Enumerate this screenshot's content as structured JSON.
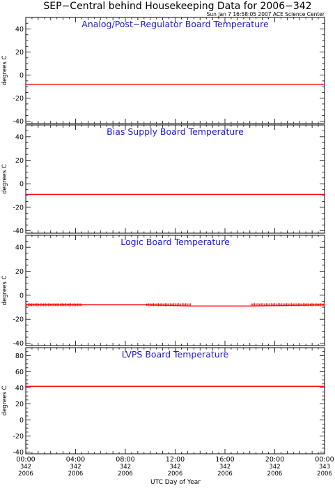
{
  "header": {
    "title": "SEP−Central behind Housekeeping Data for 2006−342",
    "timestamp": "Sun Jan  7 16:58:05 2007 ACE Science Center"
  },
  "x_axis": {
    "label": "UTC Day of Year",
    "range_hours": [
      0,
      24
    ],
    "ticks": [
      {
        "hour": 0,
        "time": "00:00",
        "doy": "342",
        "year": "2006"
      },
      {
        "hour": 4,
        "time": "04:00",
        "doy": "342",
        "year": "2006"
      },
      {
        "hour": 8,
        "time": "08:00",
        "doy": "342",
        "year": "2006"
      },
      {
        "hour": 12,
        "time": "12:00",
        "doy": "342",
        "year": "2006"
      },
      {
        "hour": 16,
        "time": "16:00",
        "doy": "342",
        "year": "2006"
      },
      {
        "hour": 20,
        "time": "20:00",
        "doy": "342",
        "year": "2006"
      },
      {
        "hour": 24,
        "time": "00:00",
        "doy": "343",
        "year": "2006"
      }
    ]
  },
  "colors": {
    "series": "#ff0000",
    "panel_title": "#1a1acc",
    "axes": "#000000"
  },
  "chart_data": [
    {
      "type": "line",
      "title": "Analog/Post−Regulator Board Temperature",
      "ylabel": "degrees C",
      "ylim": [
        -42,
        50
      ],
      "yticks": [
        -40,
        -20,
        0,
        20,
        40
      ],
      "series": [
        {
          "x": [
            0,
            24
          ],
          "values": [
            -8,
            -8
          ]
        }
      ]
    },
    {
      "type": "line",
      "title": "Bias Supply Board Temperature",
      "ylabel": "degrees C",
      "ylim": [
        -42,
        50
      ],
      "yticks": [
        -40,
        -20,
        0,
        20,
        40
      ],
      "series": [
        {
          "x": [
            0,
            24
          ],
          "values": [
            -9,
            -9
          ]
        }
      ]
    },
    {
      "type": "line",
      "title": "Logic Board Temperature",
      "ylabel": "degrees C",
      "ylim": [
        -42,
        50
      ],
      "yticks": [
        -40,
        -20,
        0,
        20,
        40
      ],
      "series": [
        {
          "x": [
            0,
            4.5,
            9.7,
            13.3,
            18.1,
            24
          ],
          "values": [
            -8,
            -8,
            -8,
            -9,
            -9,
            -8
          ]
        }
      ],
      "noisy_segments": [
        [
          0,
          4.5,
          -8
        ],
        [
          9.7,
          13.3,
          -8
        ],
        [
          18.1,
          24,
          -8
        ]
      ]
    },
    {
      "type": "line",
      "title": "LVPS Board Temperature",
      "ylabel": "degrees C",
      "ylim": [
        -42,
        90
      ],
      "yticks": [
        -40,
        -20,
        0,
        20,
        40,
        60,
        80
      ],
      "series": [
        {
          "x": [
            0,
            24
          ],
          "values": [
            42,
            42
          ]
        }
      ]
    }
  ]
}
